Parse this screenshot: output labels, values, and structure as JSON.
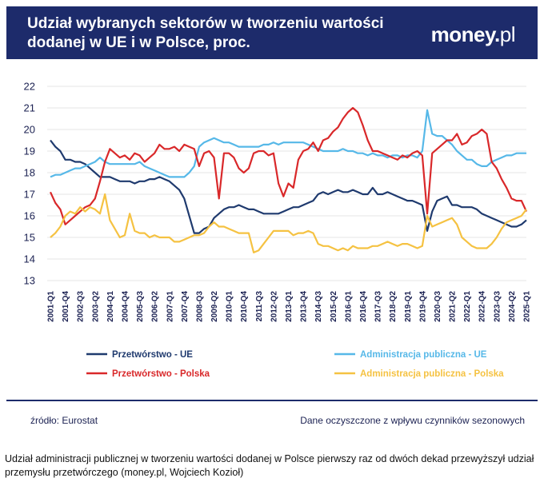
{
  "header": {
    "title": "Udział wybranych sektorów w tworzeniu wartości dodanej w UE i w Polsce, proc.",
    "brand_main": "money",
    "brand_dot": ".",
    "brand_tld": "pl"
  },
  "footer": {
    "source": "źródło: Eurostat",
    "note": "Dane oczyszczone z wpływu czynników sezonowych"
  },
  "caption": "Udział administracji publicznej w tworzeniu wartości dodanej w Polsce pierwszy raz od dwóch dekad przewyższył udział przemysłu przetwórczego (money.pl, Wojciech Kozioł)",
  "colors": {
    "header_bg": "#1d2b6b",
    "przetworstwo_ue": "#1f3a6e",
    "administracja_ue": "#56b8e8",
    "przetworstwo_polska": "#d9282a",
    "administracja_polska": "#f5c242"
  },
  "chart_data": {
    "type": "line",
    "title": "Udział wybranych sektorów w tworzeniu wartości dodanej w UE i w Polsce, proc.",
    "xlabel": "",
    "ylabel": "",
    "x_range": [
      "2001-Q1",
      "2025-Q1"
    ],
    "x_step": "quarter",
    "x_tick_labels": [
      "2001-Q1",
      "2001-Q4",
      "2002-Q3",
      "2003-Q2",
      "2004-Q1",
      "2004-Q4",
      "2005-Q3",
      "2006-Q2",
      "2007-Q1",
      "2007-Q4",
      "2008-Q3",
      "2009-Q2",
      "2010-Q1",
      "2010-Q4",
      "2011-Q3",
      "2012-Q2",
      "2013-Q1",
      "2013-Q4",
      "2014-Q3",
      "2015-Q2",
      "2016-Q1",
      "2016-Q4",
      "2017-Q3",
      "2018-Q2",
      "2019-Q1",
      "2019-Q4",
      "2020-Q3",
      "2021-Q2",
      "2022-Q1",
      "2022-Q4",
      "2023-Q3",
      "2024-Q2",
      "2025-Q1"
    ],
    "y_ticks": [
      13,
      14,
      15,
      16,
      17,
      18,
      19,
      20,
      21,
      22
    ],
    "ylim": [
      13,
      22
    ],
    "grid": "horizontal",
    "legend_position": "bottom",
    "series": [
      {
        "name": "Przetwórstwo - UE",
        "color": "#1f3a6e",
        "values": [
          19.5,
          19.2,
          19.0,
          18.6,
          18.6,
          18.5,
          18.5,
          18.4,
          18.2,
          18.0,
          17.8,
          17.8,
          17.8,
          17.7,
          17.6,
          17.6,
          17.6,
          17.5,
          17.6,
          17.6,
          17.7,
          17.7,
          17.8,
          17.7,
          17.6,
          17.4,
          17.2,
          16.8,
          16.0,
          15.2,
          15.2,
          15.4,
          15.5,
          15.9,
          16.1,
          16.3,
          16.4,
          16.4,
          16.5,
          16.4,
          16.3,
          16.3,
          16.2,
          16.1,
          16.1,
          16.1,
          16.1,
          16.2,
          16.3,
          16.4,
          16.4,
          16.5,
          16.6,
          16.7,
          17.0,
          17.1,
          17.0,
          17.1,
          17.2,
          17.1,
          17.1,
          17.2,
          17.1,
          17.0,
          17.0,
          17.3,
          17.0,
          17.0,
          17.1,
          17.0,
          16.9,
          16.8,
          16.7,
          16.7,
          16.6,
          16.5,
          15.3,
          16.2,
          16.7,
          16.8,
          16.9,
          16.5,
          16.5,
          16.4,
          16.4,
          16.4,
          16.3,
          16.1,
          16.0,
          15.9,
          15.8,
          15.7,
          15.6,
          15.5,
          15.5,
          15.6,
          15.8
        ]
      },
      {
        "name": "Administracja publiczna - UE",
        "color": "#56b8e8",
        "values": [
          17.8,
          17.9,
          17.9,
          18.0,
          18.1,
          18.2,
          18.2,
          18.3,
          18.4,
          18.5,
          18.7,
          18.5,
          18.4,
          18.4,
          18.4,
          18.4,
          18.4,
          18.4,
          18.5,
          18.3,
          18.2,
          18.1,
          18.0,
          17.9,
          17.8,
          17.8,
          17.8,
          17.8,
          18.0,
          18.3,
          19.2,
          19.4,
          19.5,
          19.6,
          19.5,
          19.4,
          19.4,
          19.3,
          19.2,
          19.2,
          19.2,
          19.2,
          19.2,
          19.3,
          19.3,
          19.4,
          19.3,
          19.4,
          19.4,
          19.4,
          19.4,
          19.4,
          19.3,
          19.2,
          19.1,
          19.0,
          19.0,
          19.0,
          19.0,
          19.1,
          19.0,
          19.0,
          18.9,
          18.9,
          18.8,
          18.9,
          18.8,
          18.8,
          18.7,
          18.8,
          18.8,
          18.7,
          18.8,
          18.8,
          18.7,
          19.0,
          20.9,
          19.8,
          19.7,
          19.7,
          19.5,
          19.3,
          19.0,
          18.8,
          18.6,
          18.6,
          18.4,
          18.3,
          18.3,
          18.5,
          18.6,
          18.7,
          18.8,
          18.8,
          18.9,
          18.9,
          18.9
        ]
      },
      {
        "name": "Przetwórstwo - Polska",
        "color": "#d9282a",
        "values": [
          17.1,
          16.6,
          16.3,
          15.6,
          15.8,
          16.0,
          16.2,
          16.4,
          16.5,
          16.8,
          17.6,
          18.5,
          19.1,
          18.9,
          18.7,
          18.8,
          18.6,
          18.9,
          18.8,
          18.5,
          18.7,
          18.9,
          19.3,
          19.1,
          19.1,
          19.2,
          19.0,
          19.3,
          19.2,
          19.1,
          18.3,
          18.9,
          19.0,
          18.7,
          16.8,
          18.9,
          18.9,
          18.7,
          18.2,
          18.0,
          18.2,
          18.9,
          19.0,
          19.0,
          18.8,
          18.9,
          17.5,
          16.9,
          17.5,
          17.3,
          18.6,
          19.0,
          19.1,
          19.4,
          19.0,
          19.5,
          19.6,
          19.9,
          20.1,
          20.5,
          20.8,
          21.0,
          20.8,
          20.2,
          19.5,
          19.0,
          19.0,
          18.9,
          18.8,
          18.7,
          18.6,
          18.8,
          18.7,
          18.9,
          19.0,
          18.8,
          16.1,
          18.9,
          19.1,
          19.3,
          19.5,
          19.5,
          19.8,
          19.3,
          19.4,
          19.7,
          19.8,
          20.0,
          19.8,
          18.5,
          18.2,
          17.7,
          17.3,
          16.8,
          16.7,
          16.7,
          16.2
        ]
      },
      {
        "name": "Administracja publiczna - Polska",
        "color": "#f5c242",
        "values": [
          15.0,
          15.2,
          15.5,
          16.0,
          16.2,
          16.1,
          16.4,
          16.2,
          16.4,
          16.3,
          16.1,
          17.0,
          15.8,
          15.4,
          15.0,
          15.1,
          16.1,
          15.3,
          15.2,
          15.2,
          15.0,
          15.1,
          15.0,
          15.0,
          15.0,
          14.8,
          14.8,
          14.9,
          15.0,
          15.1,
          15.1,
          15.2,
          15.5,
          15.7,
          15.5,
          15.5,
          15.4,
          15.3,
          15.2,
          15.2,
          15.2,
          14.3,
          14.4,
          14.7,
          15.0,
          15.3,
          15.3,
          15.3,
          15.3,
          15.1,
          15.2,
          15.2,
          15.3,
          15.2,
          14.7,
          14.6,
          14.6,
          14.5,
          14.4,
          14.5,
          14.4,
          14.6,
          14.5,
          14.5,
          14.5,
          14.6,
          14.6,
          14.7,
          14.8,
          14.7,
          14.6,
          14.7,
          14.7,
          14.6,
          14.5,
          14.6,
          16.0,
          15.5,
          15.6,
          15.7,
          15.8,
          15.9,
          15.6,
          15.0,
          14.8,
          14.6,
          14.5,
          14.5,
          14.5,
          14.7,
          15.0,
          15.4,
          15.7,
          15.8,
          15.9,
          16.0,
          16.3
        ]
      }
    ]
  }
}
